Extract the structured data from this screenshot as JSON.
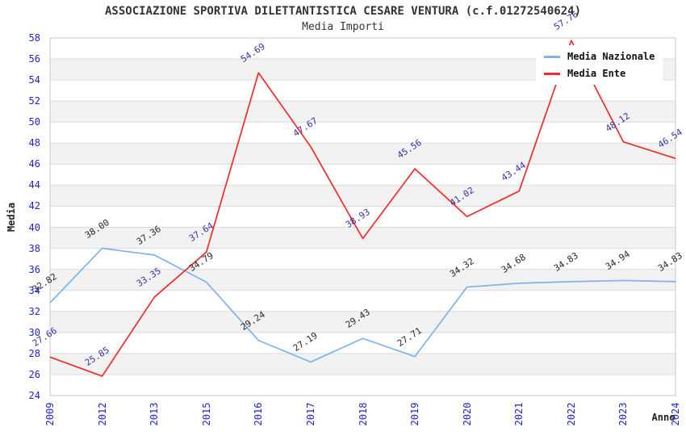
{
  "chart_data": {
    "type": "line",
    "title": "ASSOCIAZIONE SPORTIVA DILETTANTISTICA CESARE VENTURA (c.f.01272540624)",
    "subtitle": "Media Importi",
    "xlabel": "Anno",
    "ylabel": "Media",
    "categories": [
      "2009",
      "2012",
      "2013",
      "2015",
      "2016",
      "2017",
      "2018",
      "2019",
      "2020",
      "2021",
      "2022",
      "2023",
      "2024"
    ],
    "series": [
      {
        "name": "Media Nazionale",
        "color": "#7FB2E8",
        "label_color": "#262626",
        "values": [
          32.82,
          38.0,
          37.36,
          34.79,
          29.24,
          27.19,
          29.43,
          27.71,
          34.32,
          34.68,
          34.83,
          34.94,
          34.83
        ]
      },
      {
        "name": "Media Ente",
        "color": "#F42A2A",
        "label_color": "#3333A6",
        "values": [
          27.66,
          25.85,
          33.35,
          37.64,
          54.69,
          47.67,
          38.93,
          45.56,
          41.02,
          43.44,
          57.76,
          48.12,
          46.54
        ]
      }
    ],
    "ylim": [
      24,
      58
    ],
    "ytick_step": 2,
    "grid": true,
    "band_color": "#F2F2F2",
    "gridline_color": "#DCDCDC",
    "border_color": "#C8C8C8",
    "tick_color": "#2222CC",
    "legend_position": "top-right"
  }
}
